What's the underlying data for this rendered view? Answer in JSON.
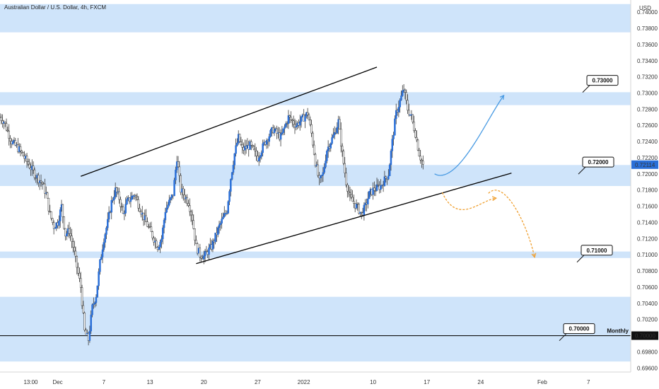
{
  "chart_data": {
    "type": "candlestick",
    "title": "Australian Dollar / U.S. Dollar, 4h, FXCM",
    "currency": "USD",
    "last_price": "0.72114",
    "y_ticks": [
      "0.74000",
      "0.73800",
      "0.73600",
      "0.73400",
      "0.73200",
      "0.73000",
      "0.72800",
      "0.72600",
      "0.72400",
      "0.72200",
      "0.72000",
      "0.71800",
      "0.71600",
      "0.71400",
      "0.71200",
      "0.71000",
      "0.70800",
      "0.70600",
      "0.70400",
      "0.70200",
      "0.70000",
      "0.69800",
      "0.69600"
    ],
    "x_ticks": [
      {
        "label": "13:00",
        "day": -3.5
      },
      {
        "label": "Dec",
        "day": 0
      },
      {
        "label": "7",
        "day": 6
      },
      {
        "label": "13",
        "day": 12
      },
      {
        "label": "20",
        "day": 19
      },
      {
        "label": "27",
        "day": 26
      },
      {
        "label": "2022",
        "day": 32
      },
      {
        "label": "10",
        "day": 41
      },
      {
        "label": "17",
        "day": 48
      },
      {
        "label": "24",
        "day": 55
      },
      {
        "label": "Feb",
        "day": 63
      },
      {
        "label": "7",
        "day": 69
      }
    ],
    "ylim": [
      0.6955,
      0.7415
    ],
    "xlim": [
      -7.5,
      74.5
    ],
    "zones": [
      {
        "from": 0.7375,
        "to": 0.741
      },
      {
        "from": 0.7285,
        "to": 0.7301
      },
      {
        "from": 0.7185,
        "to": 0.7211
      },
      {
        "from": 0.7096,
        "to": 0.7104
      },
      {
        "from": 0.6968,
        "to": 0.7048
      }
    ],
    "hlines": [
      {
        "price": 0.7,
        "label": "Monthly"
      }
    ],
    "trendlines": [
      {
        "from": [
          3,
          0.7197
        ],
        "to": [
          41.5,
          0.7332
        ]
      },
      {
        "from": [
          18,
          0.7089
        ],
        "to": [
          59,
          0.7201
        ]
      }
    ],
    "levels": [
      "0.73000",
      "0.72000",
      "0.71000",
      "0.70000"
    ],
    "projections": [
      {
        "color": "#4a9be3",
        "points": [
          [
            49,
            0.72
          ],
          [
            52,
            0.7184
          ],
          [
            56,
            0.7272
          ],
          [
            58,
            0.7297
          ]
        ]
      },
      {
        "color": "#f0a030",
        "points": [
          [
            50,
            0.7177
          ],
          [
            52,
            0.7135
          ],
          [
            55,
            0.7168
          ],
          [
            57,
            0.717
          ]
        ]
      },
      {
        "color": "#f0a030",
        "points": [
          [
            56,
            0.7176
          ],
          [
            58,
            0.7195
          ],
          [
            61,
            0.714
          ],
          [
            62,
            0.7097
          ]
        ]
      }
    ],
    "anchors": [
      [
        -7.5,
        0.727
      ],
      [
        -7,
        0.7265
      ],
      [
        -6,
        0.724
      ],
      [
        -5,
        0.723
      ],
      [
        -4,
        0.7215
      ],
      [
        -3,
        0.72
      ],
      [
        -2,
        0.7188
      ],
      [
        -1.5,
        0.7175
      ],
      [
        -1,
        0.715
      ],
      [
        -0.5,
        0.7135
      ],
      [
        0,
        0.714
      ],
      [
        0.5,
        0.716
      ],
      [
        1,
        0.7125
      ],
      [
        1.5,
        0.713
      ],
      [
        2,
        0.711
      ],
      [
        2.5,
        0.7085
      ],
      [
        3,
        0.706
      ],
      [
        3.5,
        0.7005
      ],
      [
        4,
        0.6995
      ],
      [
        4.5,
        0.7035
      ],
      [
        5,
        0.705
      ],
      [
        5.5,
        0.709
      ],
      [
        6,
        0.712
      ],
      [
        6.5,
        0.714
      ],
      [
        7,
        0.7165
      ],
      [
        7.5,
        0.718
      ],
      [
        8,
        0.717
      ],
      [
        8.5,
        0.715
      ],
      [
        9,
        0.7165
      ],
      [
        10,
        0.7175
      ],
      [
        11,
        0.715
      ],
      [
        12,
        0.713
      ],
      [
        13,
        0.711
      ],
      [
        13.5,
        0.712
      ],
      [
        14,
        0.7155
      ],
      [
        15,
        0.7175
      ],
      [
        15.5,
        0.722
      ],
      [
        16,
        0.718
      ],
      [
        17,
        0.7165
      ],
      [
        17.5,
        0.7145
      ],
      [
        18,
        0.711
      ],
      [
        18.5,
        0.71
      ],
      [
        19,
        0.7098
      ],
      [
        20,
        0.711
      ],
      [
        21,
        0.7135
      ],
      [
        22,
        0.7155
      ],
      [
        22.5,
        0.7195
      ],
      [
        23,
        0.7225
      ],
      [
        23.5,
        0.7245
      ],
      [
        24,
        0.723
      ],
      [
        25,
        0.7235
      ],
      [
        26,
        0.722
      ],
      [
        27,
        0.724
      ],
      [
        28,
        0.7255
      ],
      [
        29,
        0.7245
      ],
      [
        30,
        0.727
      ],
      [
        31,
        0.726
      ],
      [
        32,
        0.727
      ],
      [
        32.5,
        0.7275
      ],
      [
        33,
        0.725
      ],
      [
        33.5,
        0.7215
      ],
      [
        34,
        0.719
      ],
      [
        34.5,
        0.72
      ],
      [
        35,
        0.723
      ],
      [
        36,
        0.725
      ],
      [
        36.5,
        0.7265
      ],
      [
        37,
        0.7225
      ],
      [
        37.5,
        0.719
      ],
      [
        38,
        0.717
      ],
      [
        39,
        0.7158
      ],
      [
        39.5,
        0.715
      ],
      [
        40,
        0.716
      ],
      [
        40.5,
        0.7175
      ],
      [
        41,
        0.718
      ],
      [
        42,
        0.7185
      ],
      [
        43,
        0.72
      ],
      [
        43.5,
        0.724
      ],
      [
        44,
        0.7275
      ],
      [
        44.5,
        0.729
      ],
      [
        45,
        0.7305
      ],
      [
        45.5,
        0.728
      ],
      [
        46,
        0.727
      ],
      [
        46.5,
        0.725
      ],
      [
        47,
        0.7225
      ],
      [
        47.5,
        0.7211
      ]
    ]
  }
}
